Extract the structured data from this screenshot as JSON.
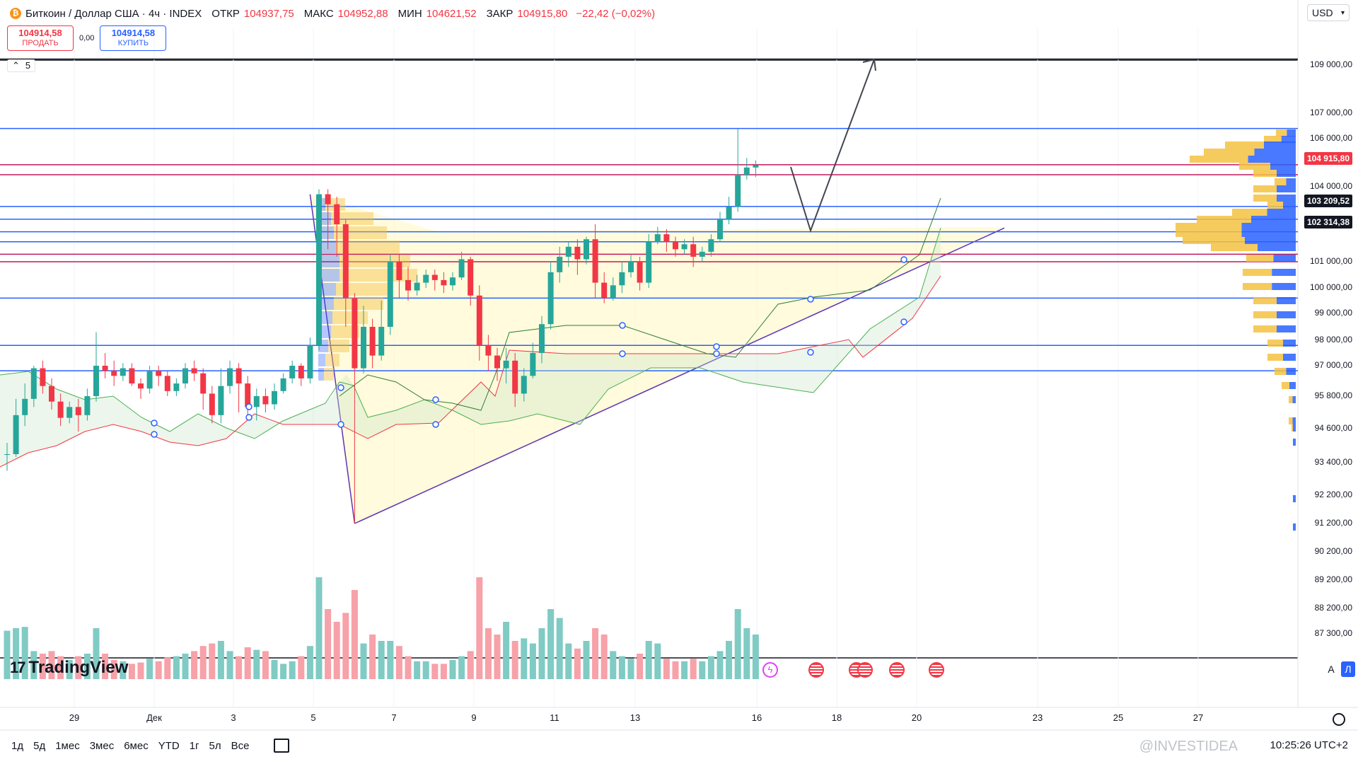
{
  "header": {
    "symbol_title": "Биткоин / Доллар США · 4ч · INDEX",
    "open_label": "ОТКР",
    "open": "104937,75",
    "high_label": "МАКС",
    "high": "104952,88",
    "low_label": "МИН",
    "low": "104621,52",
    "close_label": "ЗАКР",
    "close": "104915,80",
    "change": "−22,42 (−0,02%)"
  },
  "trade": {
    "sell_price": "104914,58",
    "sell_label": "ПРОДАТЬ",
    "spread": "0,00",
    "buy_price": "104914,58",
    "buy_label": "КУПИТЬ"
  },
  "indicators_collapse": {
    "count": "5"
  },
  "currency": "USD",
  "price_axis": {
    "labels": [
      "109 000,00",
      "107 000,00",
      "106 000,00",
      "104 000,00",
      "101 000,00",
      "100 000,00",
      "99 000,00",
      "98 000,00",
      "97 000,00",
      "95 800,00",
      "94 600,00",
      "93 400,00",
      "92 200,00",
      "91 200,00",
      "90 200,00",
      "89 200,00",
      "88 200,00",
      "87 300,00"
    ],
    "tags": [
      {
        "text": "104 915,80",
        "color": "#f23645"
      },
      {
        "text": "103 209,52",
        "color": "#131722"
      },
      {
        "text": "102 314,38",
        "color": "#131722"
      }
    ]
  },
  "time_axis": {
    "labels": [
      "29",
      "Дек",
      "3",
      "5",
      "7",
      "9",
      "11",
      "13",
      "16",
      "18",
      "20",
      "23",
      "25",
      "27"
    ]
  },
  "logo": "TradingView",
  "scale_buttons": {
    "auto": "A",
    "log": "Л"
  },
  "bottom_bar": {
    "ranges": [
      "1д",
      "5д",
      "1мес",
      "3мес",
      "6мес",
      "YTD",
      "1г",
      "5л",
      "Все"
    ],
    "clock": "10:25:26 UTC+2"
  },
  "watermark": "@INVESTIDEA",
  "colors": {
    "up": "#26a69a",
    "down": "#f23645",
    "accent": "#2962ff",
    "volume_up": "#80cbc4",
    "volume_down": "#f7a1a8"
  },
  "chart_data": {
    "type": "candlestick",
    "ylim": [
      87300,
      109000
    ],
    "price_levels": [
      106400,
      104915.8,
      104500,
      103209.52,
      102700,
      102200,
      101800,
      101300,
      101000,
      99600,
      97800,
      96800
    ],
    "candles": [
      [
        93700,
        93700,
        93100,
        94100
      ],
      [
        93700,
        95100,
        93600,
        95700
      ],
      [
        95100,
        95700,
        94700,
        96300
      ],
      [
        95700,
        96900,
        95400,
        97000
      ],
      [
        96900,
        96200,
        95900,
        97200
      ],
      [
        96200,
        95600,
        95300,
        96500
      ],
      [
        95600,
        95000,
        94700,
        95900
      ],
      [
        95000,
        95400,
        94800,
        95600
      ],
      [
        95400,
        95100,
        94500,
        95700
      ],
      [
        95100,
        95800,
        94900,
        96100
      ],
      [
        95800,
        97000,
        95600,
        98300
      ],
      [
        97000,
        96800,
        96500,
        97500
      ],
      [
        96800,
        96600,
        96200,
        97200
      ],
      [
        96600,
        96900,
        96400,
        97100
      ],
      [
        96900,
        96300,
        96200,
        97100
      ],
      [
        96300,
        96100,
        95700,
        96500
      ],
      [
        96100,
        96800,
        95900,
        97000
      ],
      [
        96800,
        96600,
        96200,
        97000
      ],
      [
        96600,
        96000,
        95800,
        96800
      ],
      [
        96000,
        96300,
        95800,
        96500
      ],
      [
        96300,
        96900,
        96100,
        97100
      ],
      [
        96900,
        96700,
        96400,
        97200
      ],
      [
        96700,
        95900,
        95300,
        96900
      ],
      [
        95900,
        95100,
        94800,
        96200
      ],
      [
        95100,
        96200,
        94800,
        96900
      ],
      [
        96200,
        96900,
        95900,
        97200
      ],
      [
        96900,
        96300,
        95200,
        97100
      ],
      [
        96300,
        95400,
        95000,
        96600
      ],
      [
        95400,
        95800,
        94900,
        96100
      ],
      [
        95800,
        95500,
        95200,
        96100
      ],
      [
        95500,
        96000,
        95300,
        96300
      ],
      [
        96000,
        96500,
        95900,
        96700
      ],
      [
        96500,
        97000,
        96300,
        97200
      ],
      [
        97000,
        96500,
        96200,
        97100
      ],
      [
        96500,
        97800,
        96300,
        98100
      ],
      [
        97800,
        103700,
        97600,
        103900
      ],
      [
        103700,
        103300,
        101500,
        103900
      ],
      [
        103300,
        102500,
        101200,
        103600
      ],
      [
        102500,
        99600,
        98500,
        102700
      ],
      [
        99600,
        96900,
        91200,
        99800
      ],
      [
        96900,
        98500,
        96700,
        99300
      ],
      [
        98500,
        97400,
        96900,
        98800
      ],
      [
        97400,
        98500,
        97200,
        99500
      ],
      [
        98500,
        101000,
        98200,
        101300
      ],
      [
        101000,
        100300,
        99600,
        101300
      ],
      [
        100300,
        99900,
        99500,
        100800
      ],
      [
        99900,
        100200,
        99700,
        100500
      ],
      [
        100200,
        100500,
        100000,
        100700
      ],
      [
        100500,
        100300,
        99900,
        100700
      ],
      [
        100300,
        100100,
        99800,
        100600
      ],
      [
        100100,
        100400,
        99900,
        100600
      ],
      [
        100400,
        101100,
        100300,
        101400
      ],
      [
        101100,
        99700,
        99300,
        101200
      ],
      [
        99700,
        97800,
        97200,
        100100
      ],
      [
        97800,
        97400,
        96800,
        98200
      ],
      [
        97400,
        96900,
        96400,
        97700
      ],
      [
        96900,
        97200,
        96300,
        97700
      ],
      [
        97200,
        95900,
        95400,
        97500
      ],
      [
        95900,
        96600,
        95600,
        96900
      ],
      [
        96600,
        97500,
        96500,
        97900
      ],
      [
        97500,
        98600,
        97100,
        98900
      ],
      [
        98600,
        100600,
        98400,
        101000
      ],
      [
        100600,
        101200,
        100200,
        101600
      ],
      [
        101200,
        101600,
        100800,
        101800
      ],
      [
        101600,
        101100,
        100500,
        101900
      ],
      [
        101100,
        101900,
        100900,
        102000
      ],
      [
        101900,
        100200,
        99600,
        102500
      ],
      [
        100200,
        99600,
        99400,
        100600
      ],
      [
        99600,
        100100,
        99500,
        100400
      ],
      [
        100100,
        100600,
        99800,
        101000
      ],
      [
        100600,
        101000,
        100400,
        101300
      ],
      [
        101000,
        100200,
        99900,
        101200
      ],
      [
        100200,
        101800,
        100000,
        102100
      ],
      [
        101800,
        102100,
        101700,
        102400
      ],
      [
        102100,
        101800,
        101400,
        102300
      ],
      [
        101800,
        101500,
        101200,
        102000
      ],
      [
        101500,
        101700,
        101300,
        101900
      ],
      [
        101700,
        101200,
        100800,
        102000
      ],
      [
        101200,
        101400,
        101000,
        101600
      ],
      [
        101400,
        101900,
        101200,
        102100
      ],
      [
        101900,
        102700,
        101800,
        103000
      ],
      [
        102700,
        103200,
        102500,
        103600
      ],
      [
        103200,
        104500,
        103000,
        106400
      ],
      [
        104500,
        104800,
        104300,
        105200
      ],
      [
        104800,
        104900,
        104400,
        105100
      ]
    ]
  }
}
